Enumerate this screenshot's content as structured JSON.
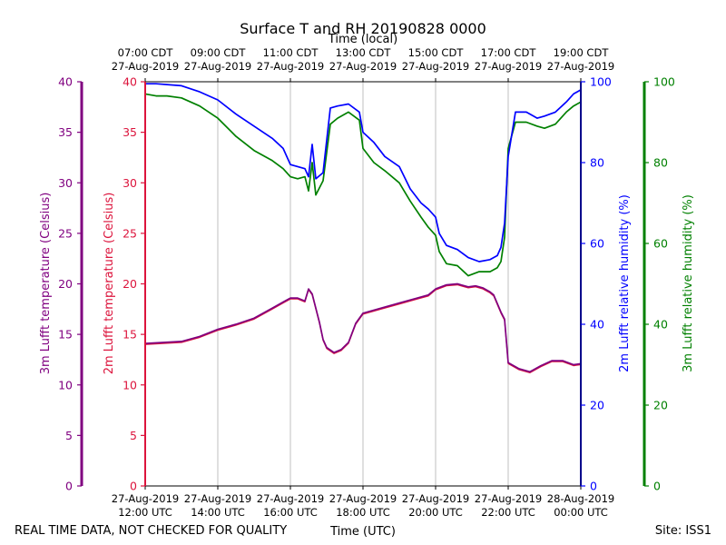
{
  "chart_data": {
    "type": "line",
    "title": "Surface T and RH 20190828 0000",
    "top_axis_label": "Time (local)",
    "bottom_axis_label": "Time (UTC)",
    "footer_left": "REAL TIME DATA, NOT CHECKED FOR QUALITY",
    "footer_right": "Site: ISS1",
    "x_range_hours": [
      12,
      24
    ],
    "x_ticks": [
      {
        "hour": 12,
        "utc_date": "27-Aug-2019",
        "utc_time": "12:00 UTC",
        "local_time": "07:00 CDT",
        "local_date": "27-Aug-2019"
      },
      {
        "hour": 14,
        "utc_date": "27-Aug-2019",
        "utc_time": "14:00 UTC",
        "local_time": "09:00 CDT",
        "local_date": "27-Aug-2019"
      },
      {
        "hour": 16,
        "utc_date": "27-Aug-2019",
        "utc_time": "16:00 UTC",
        "local_time": "11:00 CDT",
        "local_date": "27-Aug-2019"
      },
      {
        "hour": 18,
        "utc_date": "27-Aug-2019",
        "utc_time": "18:00 UTC",
        "local_time": "13:00 CDT",
        "local_date": "27-Aug-2019"
      },
      {
        "hour": 20,
        "utc_date": "27-Aug-2019",
        "utc_time": "20:00 UTC",
        "local_time": "15:00 CDT",
        "local_date": "27-Aug-2019"
      },
      {
        "hour": 22,
        "utc_date": "27-Aug-2019",
        "utc_time": "22:00 UTC",
        "local_time": "17:00 CDT",
        "local_date": "27-Aug-2019"
      },
      {
        "hour": 24,
        "utc_date": "28-Aug-2019",
        "utc_time": "00:00 UTC",
        "local_time": "19:00 CDT",
        "local_date": "27-Aug-2019"
      }
    ],
    "axes": {
      "temp_3m": {
        "label": "3m Lufft temperature (Celsius)",
        "range": [
          0,
          40
        ],
        "ticks": [
          0,
          5,
          10,
          15,
          20,
          25,
          30,
          35,
          40
        ],
        "color": "#800080"
      },
      "temp_2m": {
        "label": "2m Lufft temperature (Celsius)",
        "range": [
          0,
          40
        ],
        "ticks": [
          0,
          5,
          10,
          15,
          20,
          25,
          30,
          35,
          40
        ],
        "color": "#dc143c"
      },
      "rh_2m": {
        "label": "2m Lufft relative humidity (%)",
        "range": [
          0,
          100
        ],
        "ticks": [
          0,
          20,
          40,
          60,
          80,
          100
        ],
        "color": "#0000ff"
      },
      "rh_3m": {
        "label": "3m Lufft relative humidity (%)",
        "range": [
          0,
          100
        ],
        "ticks": [
          0,
          20,
          40,
          60,
          80,
          100
        ],
        "color": "#008000"
      }
    },
    "series": [
      {
        "name": "3m Lufft temperature",
        "axis": "temp_3m",
        "color": "#800080",
        "x": [
          12.0,
          12.5,
          13.0,
          13.5,
          14.0,
          14.5,
          15.0,
          15.5,
          15.8,
          16.0,
          16.2,
          16.4,
          16.5,
          16.6,
          16.8,
          16.9,
          17.0,
          17.2,
          17.4,
          17.6,
          17.8,
          18.0,
          18.5,
          19.0,
          19.5,
          19.8,
          20.0,
          20.3,
          20.6,
          20.9,
          21.1,
          21.3,
          21.5,
          21.6,
          21.8,
          21.9,
          22.0,
          22.3,
          22.6,
          22.9,
          23.2,
          23.5,
          23.8,
          24.0
        ],
        "y": [
          14.1,
          14.2,
          14.3,
          14.8,
          15.5,
          16.0,
          16.6,
          17.6,
          18.2,
          18.6,
          18.6,
          18.3,
          19.5,
          19.0,
          16.2,
          14.5,
          13.7,
          13.2,
          13.5,
          14.2,
          16.1,
          17.1,
          17.6,
          18.1,
          18.6,
          18.9,
          19.5,
          19.9,
          20.0,
          19.7,
          19.8,
          19.6,
          19.2,
          18.9,
          17.2,
          16.5,
          12.2,
          11.6,
          11.3,
          11.9,
          12.4,
          12.4,
          12.0,
          12.1
        ]
      },
      {
        "name": "2m Lufft temperature",
        "axis": "temp_2m",
        "color": "#dc143c",
        "x": [
          12.0,
          12.5,
          13.0,
          13.5,
          14.0,
          14.5,
          15.0,
          15.5,
          15.8,
          16.0,
          16.2,
          16.4,
          16.5,
          16.6,
          16.8,
          16.9,
          17.0,
          17.2,
          17.4,
          17.6,
          17.8,
          18.0,
          18.5,
          19.0,
          19.5,
          19.8,
          20.0,
          20.3,
          20.6,
          20.9,
          21.1,
          21.3,
          21.5,
          21.6,
          21.8,
          21.9,
          22.0,
          22.3,
          22.6,
          22.9,
          23.2,
          23.5,
          23.8,
          24.0
        ],
        "y": [
          14.0,
          14.1,
          14.2,
          14.7,
          15.4,
          15.9,
          16.5,
          17.5,
          18.1,
          18.5,
          18.5,
          18.2,
          19.4,
          18.9,
          16.1,
          14.4,
          13.6,
          13.1,
          13.4,
          14.1,
          16.0,
          17.0,
          17.5,
          18.0,
          18.5,
          18.8,
          19.4,
          19.8,
          19.9,
          19.6,
          19.7,
          19.5,
          19.1,
          18.8,
          17.1,
          16.4,
          12.1,
          11.5,
          11.2,
          11.8,
          12.3,
          12.3,
          11.9,
          12.0
        ]
      },
      {
        "name": "2m Lufft relative humidity",
        "axis": "rh_2m",
        "color": "#0000ff",
        "x": [
          12.0,
          12.3,
          12.6,
          13.0,
          13.5,
          14.0,
          14.5,
          15.0,
          15.5,
          15.8,
          16.0,
          16.2,
          16.4,
          16.5,
          16.6,
          16.7,
          16.9,
          17.1,
          17.3,
          17.6,
          17.9,
          18.0,
          18.3,
          18.6,
          19.0,
          19.3,
          19.6,
          19.8,
          20.0,
          20.1,
          20.3,
          20.6,
          20.9,
          21.2,
          21.5,
          21.7,
          21.8,
          21.9,
          22.0,
          22.2,
          22.5,
          22.8,
          23.0,
          23.3,
          23.6,
          23.8,
          24.0
        ],
        "y": [
          99.5,
          99.5,
          99.3,
          99.0,
          97.5,
          95.5,
          92.0,
          89.0,
          86.0,
          83.5,
          79.5,
          79.0,
          78.5,
          76.5,
          84.5,
          76.0,
          77.5,
          93.5,
          94.0,
          94.5,
          92.5,
          87.5,
          85.0,
          81.5,
          79.0,
          73.5,
          70.0,
          68.5,
          66.5,
          62.5,
          59.5,
          58.5,
          56.5,
          55.5,
          56.0,
          57.0,
          59.0,
          65.0,
          81.5,
          92.5,
          92.5,
          91.0,
          91.5,
          92.5,
          95.0,
          97.0,
          98.0
        ]
      },
      {
        "name": "3m Lufft relative humidity",
        "axis": "rh_3m",
        "color": "#008000",
        "x": [
          12.0,
          12.3,
          12.6,
          13.0,
          13.5,
          14.0,
          14.5,
          15.0,
          15.5,
          15.8,
          16.0,
          16.2,
          16.4,
          16.5,
          16.6,
          16.7,
          16.9,
          17.1,
          17.3,
          17.6,
          17.9,
          18.0,
          18.3,
          18.6,
          19.0,
          19.3,
          19.6,
          19.8,
          20.0,
          20.1,
          20.3,
          20.6,
          20.9,
          21.2,
          21.5,
          21.7,
          21.8,
          21.9,
          22.0,
          22.2,
          22.5,
          22.8,
          23.0,
          23.3,
          23.6,
          23.8,
          24.0
        ],
        "y": [
          97.0,
          96.5,
          96.5,
          96.0,
          94.0,
          91.0,
          86.5,
          83.0,
          80.5,
          78.5,
          76.5,
          76.0,
          76.5,
          73.0,
          80.0,
          72.0,
          75.5,
          89.5,
          91.0,
          92.5,
          90.5,
          83.5,
          80.0,
          78.0,
          75.0,
          70.5,
          66.5,
          64.0,
          62.0,
          58.0,
          55.0,
          54.5,
          52.0,
          53.0,
          53.0,
          54.0,
          55.5,
          61.5,
          83.5,
          90.0,
          90.0,
          89.0,
          88.5,
          89.5,
          92.5,
          94.0,
          95.0
        ]
      }
    ]
  }
}
